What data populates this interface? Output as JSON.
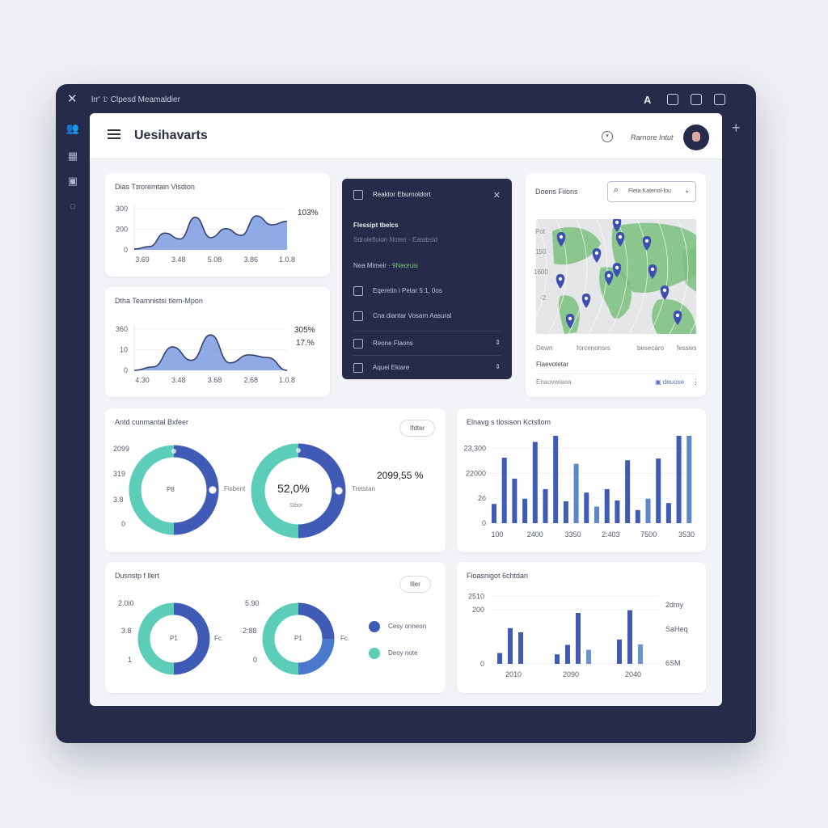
{
  "window": {
    "title": "lrr' 𝔇 Clpesd Meamaldier",
    "close_icon": "close-icon",
    "top_icons": [
      "font-icon",
      "clipboard-icon",
      "chart-icon",
      "download-icon"
    ],
    "side_icons": [
      "users-icon",
      "building-icon",
      "calculator-icon",
      "clock-icon"
    ],
    "plus_icon": "plus-icon"
  },
  "header": {
    "title": "Uesihavarts",
    "user_name": "Rarnore Intut",
    "menu_icon": "hamburger-icon",
    "status_icon": "chevron-circle-icon"
  },
  "colors": {
    "navy": "#262b4a",
    "blue": "#3f5bb5",
    "teal": "#5ccdb8",
    "area": "#7b9be0",
    "map_green": "#7dbf7f",
    "pin": "#3d4fb0"
  },
  "area_charts": [
    {
      "title": "Dias Tɪroremtain Visdion",
      "annotation": "103%",
      "yticks": [
        "0",
        "200",
        "300"
      ],
      "xticks": [
        "3.69",
        "3.48",
        "5.08",
        "3.86",
        "1.0.8"
      ],
      "ylim": [
        0,
        300
      ],
      "values": [
        6,
        24,
        122,
        79,
        237,
        89,
        154,
        105,
        247,
        182,
        207
      ]
    },
    {
      "title": "Dtha Teamnistsi tlem-Mpon",
      "annotations": [
        "305%",
        "17.%"
      ],
      "yticks": [
        "0",
        "10",
        "360"
      ],
      "xticks": [
        "4.30",
        "3.48",
        "3.68",
        "2.68",
        "1.0.8"
      ],
      "ylim": [
        0,
        360
      ],
      "values": [
        0,
        30,
        204,
        88,
        309,
        65,
        135,
        111,
        0
      ]
    }
  ],
  "dark_panel": {
    "title": "Reaktor Eburnoldort",
    "section": "Flessipt tbelcs",
    "sub": "Sdrolefloion Noteri  ·  Eatabsid",
    "meta": "Nea Mimeir  ·",
    "meta_status": "9Neoruis",
    "items": [
      {
        "label": "Eqeretin i Petar  5:1, 0os",
        "icon": "document-icon"
      },
      {
        "label": "Cna diantar  Vosarn Aasural",
        "icon": "gift-icon"
      },
      {
        "label": "Reone Flaons",
        "icon": "monitor-icon"
      },
      {
        "label": "Aquei Ekiare",
        "icon": "calendar-icon"
      }
    ]
  },
  "map_card": {
    "title": "Doens Fiions",
    "search_placeholder": "Fleta Katenol-lou",
    "yticks": [
      "Pot",
      "150",
      "1600",
      "-2"
    ],
    "columns": [
      "Dewn",
      "forcenonsrs",
      "besecaro",
      "fessws"
    ],
    "section": "Flaevotetar",
    "footer_left": "Enaovwiaea",
    "footer_link": "deuose"
  },
  "donut_card_1": {
    "title": "Antd cunmantal Bxfeer",
    "filter": "Ifdter",
    "yticks": [
      "2099",
      "319",
      "3.8",
      "0"
    ],
    "donuts": [
      {
        "center": "P8",
        "label": "Fisbent",
        "blue_fraction": 0.5
      },
      {
        "center": "52,0%",
        "sub": "Sibor",
        "label": "Tretstan",
        "blue_fraction": 0.5
      }
    ],
    "big_value": "2099,55 %"
  },
  "donut_card_2": {
    "title": "Dusnstp f llert",
    "filter": "Iller",
    "donuts": [
      {
        "yticks": [
          "2.0i0",
          "3.8",
          "1"
        ],
        "center": "P1",
        "label": "Fc.",
        "fractions": [
          0.5,
          0,
          0.5
        ]
      },
      {
        "yticks": [
          "5.90",
          "2:88",
          "0"
        ],
        "center": "P1",
        "label": "Fc.",
        "fractions": [
          0.25,
          0.25,
          0.5
        ]
      }
    ],
    "legend": [
      {
        "label": "Cesy onneon",
        "color": "#3f5bb5"
      },
      {
        "label": "Deoy note",
        "color": "#5ccdb8"
      }
    ]
  },
  "chart_data": [
    {
      "type": "bar",
      "title": "Elnavg s tlosison Kctsllom",
      "yticks": [
        "0",
        "2ó",
        "22000",
        "23,300"
      ],
      "xticks": [
        "100",
        "2400",
        "3350",
        "2:403",
        "7500",
        "3530"
      ],
      "ylabel_note": "",
      "values_percent_of_axis": [
        22,
        75,
        51,
        28,
        93,
        39,
        100,
        25,
        68,
        35,
        19,
        39,
        26,
        72,
        15,
        28,
        74,
        23,
        100,
        100
      ],
      "light": [
        8,
        10,
        15,
        19
      ]
    },
    {
      "type": "bar",
      "title": "Fioasnigot 6chtdan",
      "yticks": [
        "0",
        "200",
        "2510"
      ],
      "right_ticks": [
        "6SM",
        "SaHeq",
        "2dmy"
      ],
      "xticks": [
        "2010",
        "2090",
        "2040"
      ],
      "groups": [
        [
          40,
          132,
          117
        ],
        [
          35,
          70,
          188,
          52
        ],
        [
          90,
          198,
          72
        ]
      ],
      "ylim": [
        0,
        218
      ]
    }
  ]
}
